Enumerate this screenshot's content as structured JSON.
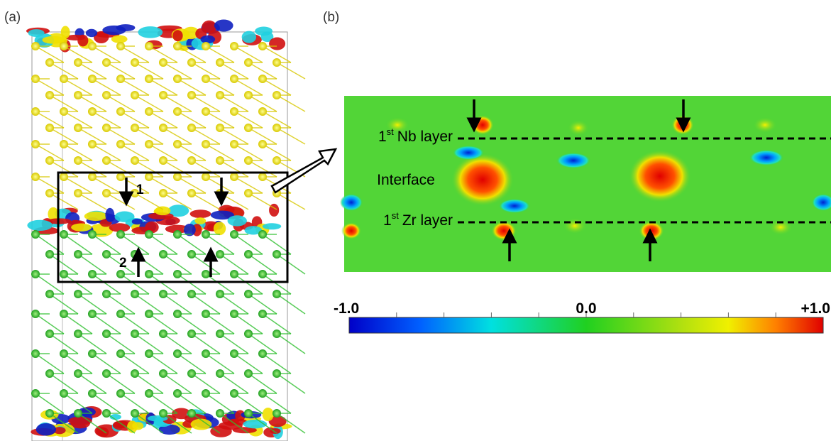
{
  "panel_a": {
    "label": "(a)",
    "site_labels": [
      "1",
      "2"
    ]
  },
  "panel_b": {
    "label": "(b)",
    "nb_layer": {
      "number": "1",
      "suffix": "st",
      "text": "Nb layer"
    },
    "interface": "Interface",
    "zr_layer": {
      "number": "1",
      "suffix": "st",
      "text": "Zr layer"
    }
  },
  "colorbar": {
    "labels": [
      "-1.0",
      "0.0",
      "+1.0"
    ]
  }
}
